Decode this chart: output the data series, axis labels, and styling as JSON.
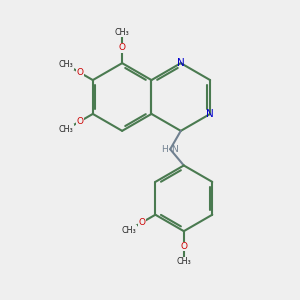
{
  "bg_color": "#efefef",
  "bond_color": "#4a7a50",
  "bond_width": 1.5,
  "nitrogen_color": "#0000cc",
  "oxygen_color": "#cc0000",
  "nh_color": "#708090",
  "figsize": [
    3.0,
    3.0
  ],
  "dpi": 100,
  "xlim": [
    0,
    10
  ],
  "ylim": [
    0,
    10
  ]
}
